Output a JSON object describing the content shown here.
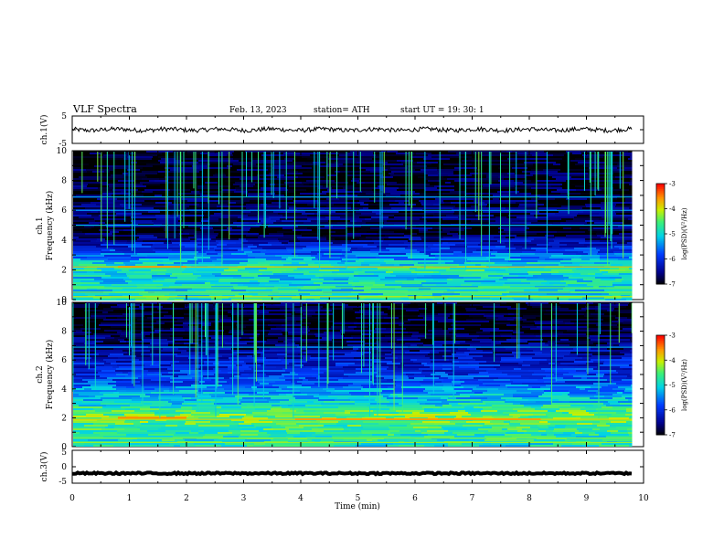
{
  "header": {
    "title": "VLF  Spectra",
    "date": "Feb. 13, 2023",
    "station": "station= ATH",
    "start": "start  UT  =    19: 30: 1"
  },
  "chart_data": [
    {
      "id": "ch1-waveform",
      "type": "line",
      "ylabel": "ch.1(V)",
      "ylim": [
        -5,
        5
      ],
      "yticks": [
        "5",
        "-5"
      ],
      "xlim": [
        0,
        10
      ],
      "trace": {
        "start_min": 0,
        "end_min": 9.8,
        "baseline": 0,
        "amplitude": 0.8,
        "color": "#000000"
      }
    },
    {
      "id": "ch1-spectrogram",
      "type": "heatmap",
      "ylabel": "ch.1\nFrequency  (kHz)",
      "ylabel_line1": "ch.1",
      "ylabel_line2": "Frequency  (kHz)",
      "ylim": [
        0,
        10
      ],
      "yticks": [
        "0",
        "2",
        "4",
        "6",
        "8",
        "10"
      ],
      "xlim": [
        0,
        10
      ],
      "data_end_min": 9.8,
      "colorbar": {
        "label": "log(PSD)(V²/Hz)",
        "ticks": [
          "-3",
          "-4",
          "-5",
          "-6",
          "-7"
        ],
        "range": [
          -7,
          -3
        ]
      },
      "profile_khz": [
        [
          0,
          -4.8
        ],
        [
          0.5,
          -5.0
        ],
        [
          1.0,
          -4.9
        ],
        [
          1.5,
          -5.1
        ],
        [
          2.0,
          -4.7
        ],
        [
          2.5,
          -5.1
        ],
        [
          3.0,
          -5.6
        ],
        [
          3.5,
          -6.0
        ],
        [
          4.0,
          -6.5
        ],
        [
          4.5,
          -6.9
        ],
        [
          5.0,
          -6.6
        ],
        [
          6.0,
          -6.7
        ],
        [
          7.0,
          -6.8
        ],
        [
          8.0,
          -6.9
        ],
        [
          9.0,
          -6.9
        ],
        [
          10.0,
          -6.9
        ]
      ],
      "lines_khz": [
        [
          0.2,
          -4.0
        ],
        [
          0.5,
          -4.3
        ],
        [
          0.8,
          -4.4
        ],
        [
          2.2,
          -3.8
        ],
        [
          5.0,
          -5.2
        ],
        [
          6.0,
          -5.4
        ],
        [
          6.9,
          -5.3
        ]
      ],
      "band_segments": [
        {
          "khz": 2.2,
          "from_min": 0.8,
          "to_min": 2.0,
          "level": -3.6
        }
      ],
      "spheric_count": 90
    },
    {
      "id": "ch2-spectrogram",
      "type": "heatmap",
      "ylabel": "ch.2\nFrequency  (kHz)",
      "ylabel_line1": "ch.2",
      "ylabel_line2": "Frequency  (kHz)",
      "ylim": [
        0,
        10
      ],
      "yticks": [
        "0",
        "2",
        "4",
        "6",
        "8",
        "10"
      ],
      "xlim": [
        0,
        10
      ],
      "data_end_min": 9.8,
      "colorbar": {
        "label": "log(PSD)(V²/Hz)",
        "ticks": [
          "-3",
          "-4",
          "-5",
          "-6",
          "-7"
        ],
        "range": [
          -7,
          -3
        ]
      },
      "profile_khz": [
        [
          0,
          -4.9
        ],
        [
          0.5,
          -4.8
        ],
        [
          1.0,
          -4.7
        ],
        [
          1.5,
          -4.6
        ],
        [
          2.0,
          -4.3
        ],
        [
          2.5,
          -4.6
        ],
        [
          3.0,
          -5.0
        ],
        [
          3.5,
          -5.2
        ],
        [
          4.0,
          -5.4
        ],
        [
          4.5,
          -5.8
        ],
        [
          5.0,
          -5.9
        ],
        [
          6.0,
          -6.2
        ],
        [
          7.0,
          -6.6
        ],
        [
          8.0,
          -6.8
        ],
        [
          9.0,
          -6.9
        ],
        [
          10.0,
          -6.9
        ]
      ],
      "lines_khz": [
        [
          0.3,
          -4.2
        ],
        [
          0.6,
          -4.3
        ],
        [
          1.9,
          -3.9
        ],
        [
          6.9,
          -5.3
        ]
      ],
      "band_segments": [
        {
          "khz": 2.0,
          "from_min": 0.8,
          "to_min": 2.0,
          "level": -3.5
        },
        {
          "khz": 1.9,
          "from_min": 3.9,
          "to_min": 8.2,
          "level": -3.6
        }
      ],
      "spheric_count": 80
    },
    {
      "id": "ch3-waveform",
      "type": "line",
      "ylabel": "ch.3(V)",
      "ylim": [
        -5,
        5
      ],
      "yticks": [
        "5",
        "0",
        "-5"
      ],
      "xlim": [
        0,
        10
      ],
      "trace": {
        "start_min": 0,
        "end_min": 9.8,
        "baseline": -2.0,
        "amplitude": 0.25,
        "color": "#000000"
      }
    }
  ],
  "xaxis": {
    "label": "Time  (min)",
    "ticks": [
      "0",
      "1",
      "2",
      "3",
      "4",
      "5",
      "6",
      "7",
      "8",
      "9",
      "10"
    ]
  }
}
